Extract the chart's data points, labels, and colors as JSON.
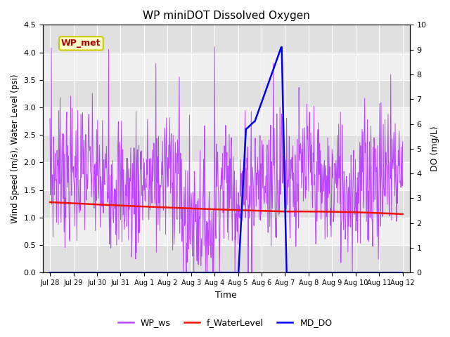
{
  "title": "WP miniDOT Dissolved Oxygen",
  "ylabel_left": "Wind Speed (m/s), Water Level (psi)",
  "ylabel_right": "DO (mg/L)",
  "xlabel": "Time",
  "xlim_days": [
    -0.3,
    15.3
  ],
  "ylim_left": [
    0,
    4.5
  ],
  "ylim_right": [
    0,
    10.0
  ],
  "yticks_left": [
    0.0,
    0.5,
    1.0,
    1.5,
    2.0,
    2.5,
    3.0,
    3.5,
    4.0,
    4.5
  ],
  "yticks_right": [
    0.0,
    1.0,
    2.0,
    3.0,
    4.0,
    5.0,
    6.0,
    7.0,
    8.0,
    9.0,
    10.0
  ],
  "xtick_labels": [
    "Jul 28",
    "Jul 29",
    "Jul 30",
    "Jul 31",
    "Aug 1",
    "Aug 2",
    "Aug 3",
    "Aug 4",
    "Aug 5",
    "Aug 6",
    "Aug 7",
    "Aug 8",
    "Aug 9",
    "Aug 10",
    "Aug 11",
    "Aug 12"
  ],
  "xtick_positions": [
    0,
    1,
    2,
    3,
    4,
    5,
    6,
    7,
    8,
    9,
    10,
    11,
    12,
    13,
    14,
    15
  ],
  "wp_ws_color": "#bb44ff",
  "f_waterlevel_color": "#ee1100",
  "md_do_color": "#0000ee",
  "legend_label_ws": "WP_ws",
  "legend_label_wl": "f_WaterLevel",
  "legend_label_do": "MD_DO",
  "annotation_text": "WP_met",
  "annotation_color": "#aa0000",
  "annotation_bg": "#ffffcc",
  "annotation_border": "#cccc00",
  "bg_light": "#f0f0f0",
  "bg_dark": "#e0e0e0",
  "grid_color": "#ffffff"
}
